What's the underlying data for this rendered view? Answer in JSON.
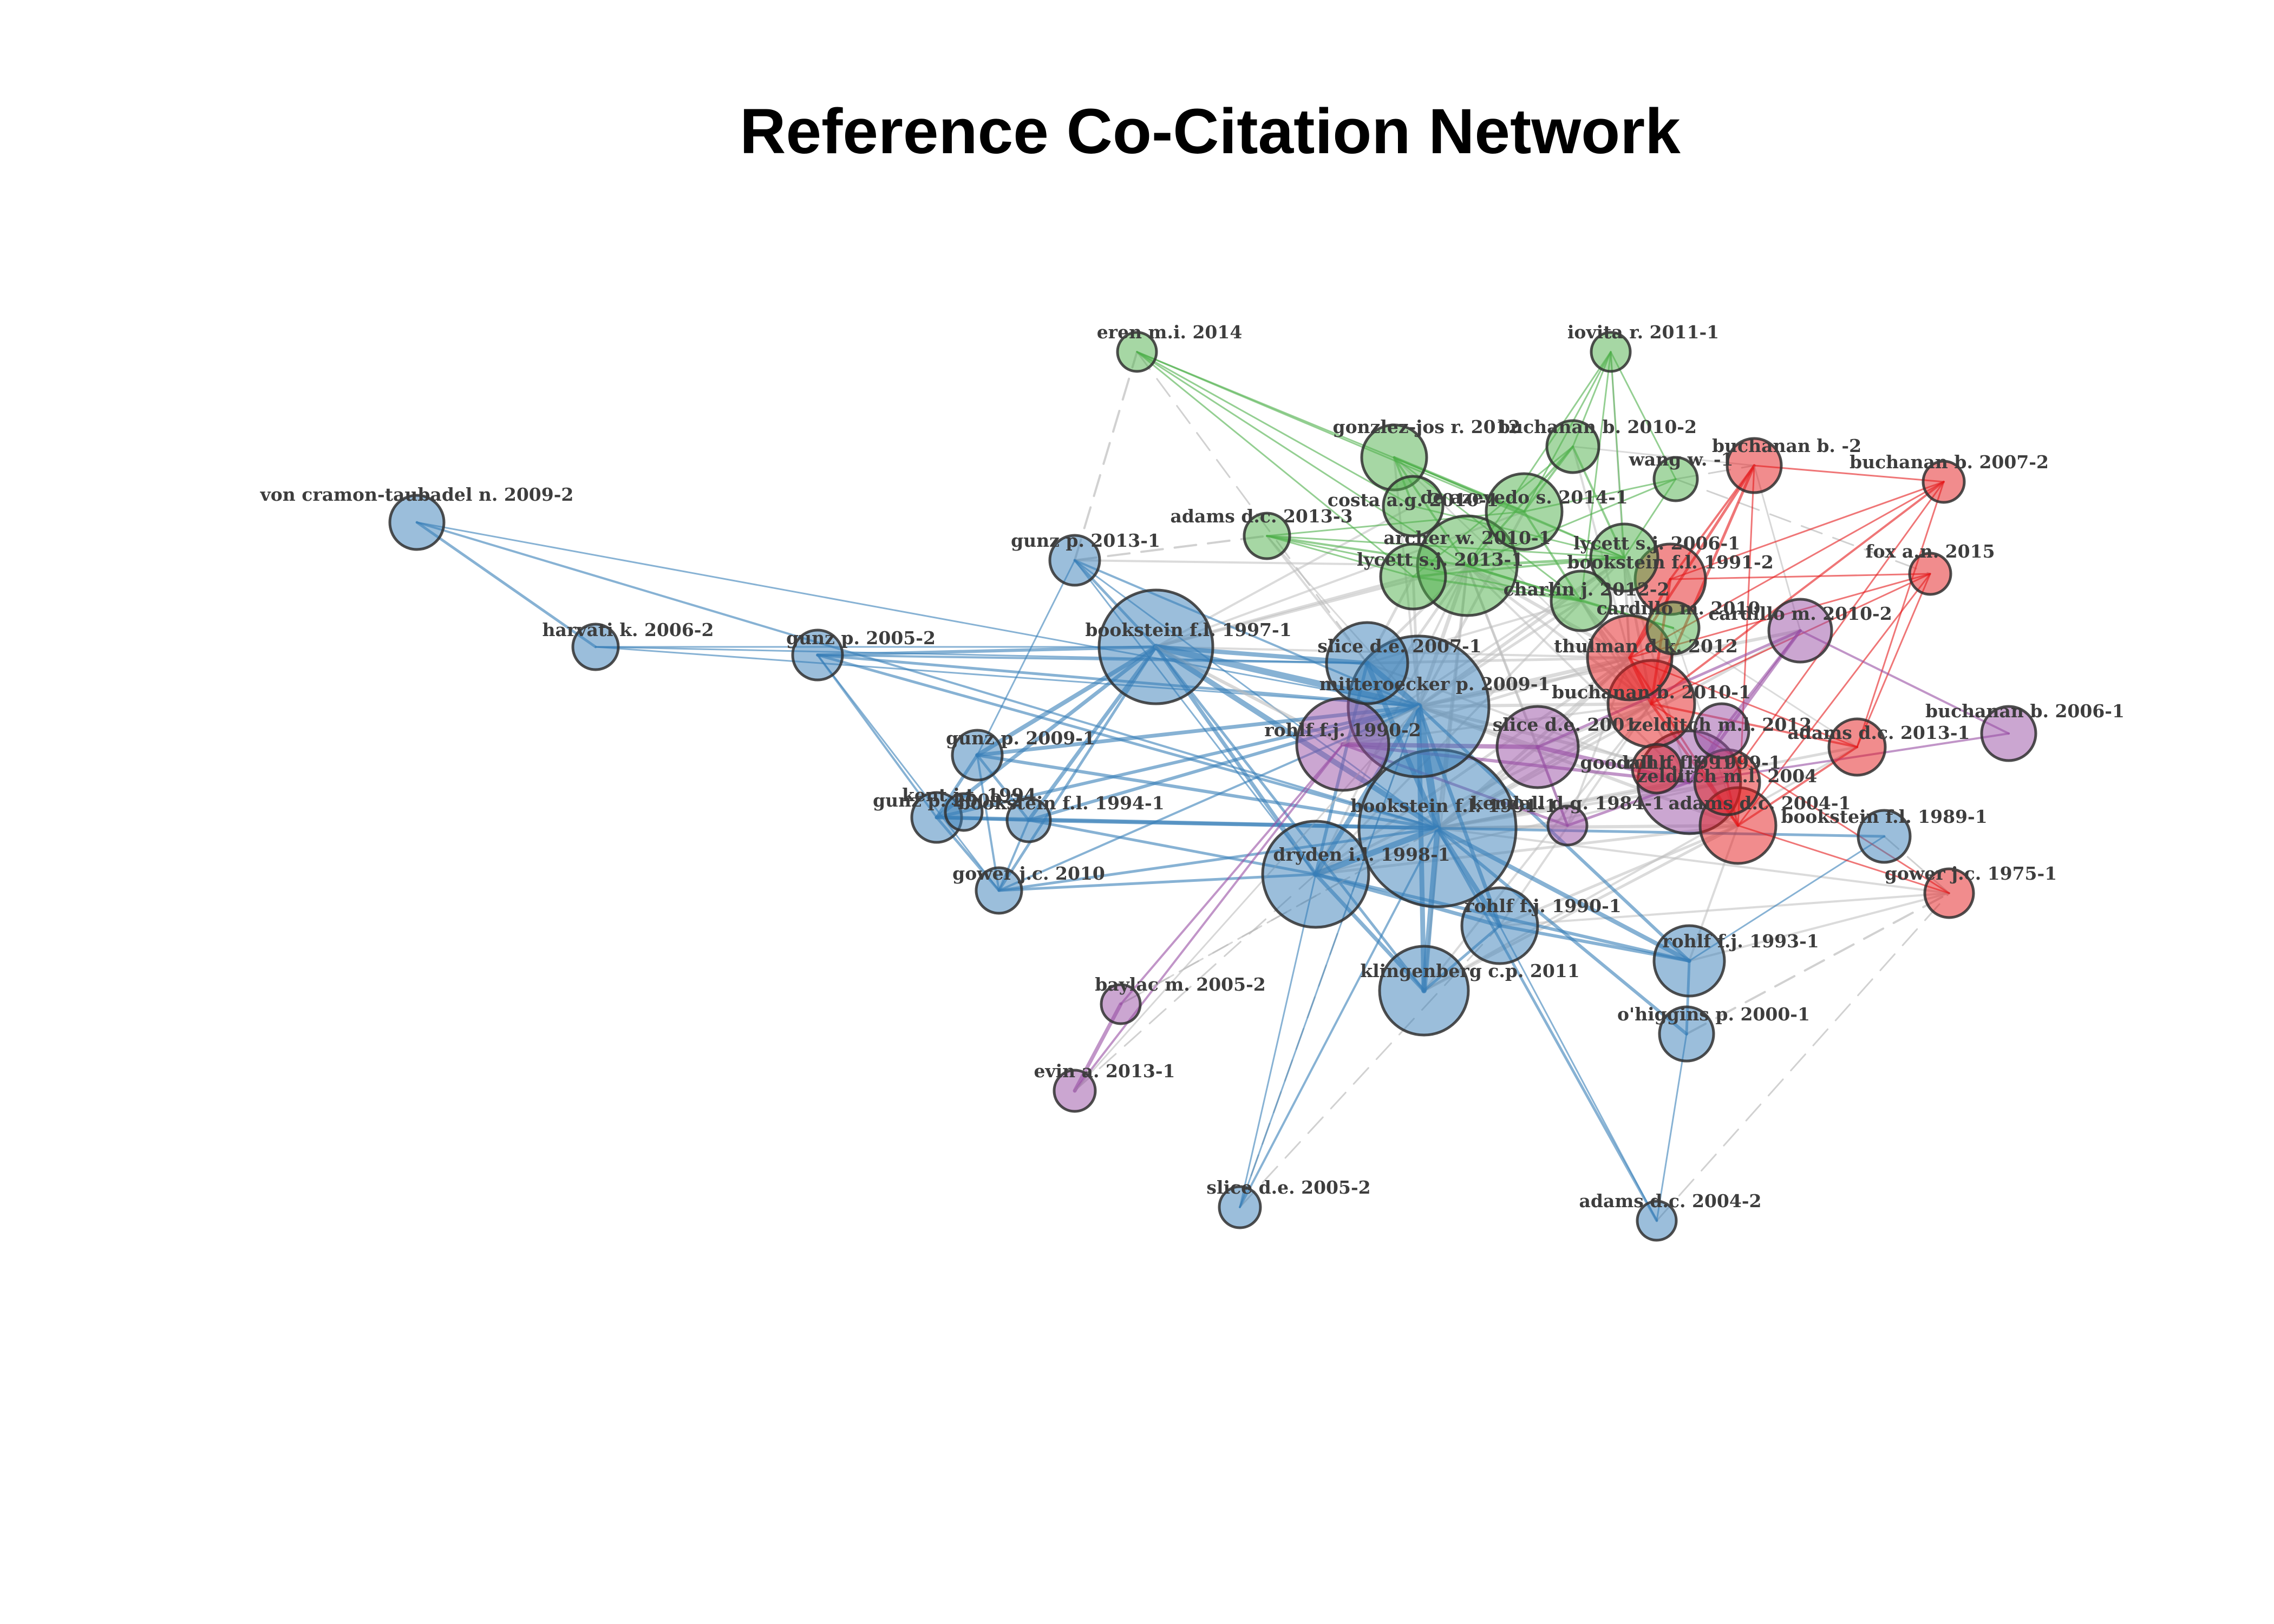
{
  "title": "Reference Co-Citation Network",
  "colors": {
    "blue": "#377eb8",
    "green": "#4daf4a",
    "red": "#e41a1c",
    "purple": "#984ea3",
    "between": "#bdbdbd"
  },
  "nodes": [
    {
      "id": "von cramon-taubadel n. 2009-2",
      "group": "blue"
    },
    {
      "id": "harvati k. 2006-2",
      "group": "blue"
    },
    {
      "id": "gunz p. 2005-2",
      "group": "blue"
    },
    {
      "id": "gunz p. 2013-1",
      "group": "blue"
    },
    {
      "id": "bookstein f.l. 1997-1",
      "group": "blue"
    },
    {
      "id": "gunz p. 2009-1",
      "group": "blue"
    },
    {
      "id": "gunz p. 2009-2",
      "group": "blue"
    },
    {
      "id": "kent j.t. 1994",
      "group": "blue"
    },
    {
      "id": "bookstein f.l. 1994-1",
      "group": "blue"
    },
    {
      "id": "gower j.c. 2010",
      "group": "blue"
    },
    {
      "id": "slice d.e. 2007-1",
      "group": "blue"
    },
    {
      "id": "mitteroecker p. 2009-1",
      "group": "blue"
    },
    {
      "id": "bookstein f.l. 1991-1",
      "group": "blue"
    },
    {
      "id": "dryden i.l. 1998-1",
      "group": "blue"
    },
    {
      "id": "rohlf f.j. 1990-1",
      "group": "blue"
    },
    {
      "id": "klingenberg c.p. 2011",
      "group": "blue"
    },
    {
      "id": "rohlf f.j. 1993-1",
      "group": "blue"
    },
    {
      "id": "o'higgins p. 2000-1",
      "group": "blue"
    },
    {
      "id": "bookstein f.l. 1989-1",
      "group": "blue"
    },
    {
      "id": "slice d.e. 2005-2",
      "group": "blue"
    },
    {
      "id": "adams d.c. 2004-2",
      "group": "blue"
    },
    {
      "id": "eren m.i. 2014",
      "group": "green"
    },
    {
      "id": "iovita r. 2011-1",
      "group": "green"
    },
    {
      "id": "gonzlez-jos r. 2012",
      "group": "green"
    },
    {
      "id": "buchanan b. 2010-2",
      "group": "green"
    },
    {
      "id": "wang w. -1",
      "group": "green"
    },
    {
      "id": "costa a.g. 2010-1",
      "group": "green"
    },
    {
      "id": "de azevedo s. 2014-1",
      "group": "green"
    },
    {
      "id": "adams d.c. 2013-3",
      "group": "green"
    },
    {
      "id": "archer w. 2010-1",
      "group": "green"
    },
    {
      "id": "lycett s.j. 2013-1",
      "group": "green"
    },
    {
      "id": "lycett s.j. 2006-1",
      "group": "green"
    },
    {
      "id": "charlin j. 2012-2",
      "group": "green"
    },
    {
      "id": "cardillo m. 2010",
      "group": "green"
    },
    {
      "id": "buchanan b. -2",
      "group": "red"
    },
    {
      "id": "buchanan b. 2007-2",
      "group": "red"
    },
    {
      "id": "fox a.n. 2015",
      "group": "red"
    },
    {
      "id": "bookstein f.l. 1991-2",
      "group": "red"
    },
    {
      "id": "thulman d.k. 2012",
      "group": "red"
    },
    {
      "id": "buchanan b. 2010-1",
      "group": "red"
    },
    {
      "id": "adams d.c. 2013-1",
      "group": "red"
    },
    {
      "id": "adams d.c. 2004-1",
      "group": "red"
    },
    {
      "id": "gower j.c. 1975-1",
      "group": "red"
    },
    {
      "id": "zelditch m.l. 2004",
      "group": "red"
    },
    {
      "id": "goodall c. 1991",
      "group": "red"
    },
    {
      "id": "rohlf f.j. 1990-2",
      "group": "purple"
    },
    {
      "id": "slice d.e. 2001",
      "group": "purple"
    },
    {
      "id": "rohlf f.j. 1999-1",
      "group": "purple"
    },
    {
      "id": "kendall d.g. 1984-1",
      "group": "purple"
    },
    {
      "id": "cardillo m. 2010-2",
      "group": "purple"
    },
    {
      "id": "zelditch m.l. 2012",
      "group": "purple"
    },
    {
      "id": "buchanan b. 2006-1",
      "group": "purple"
    },
    {
      "id": "baylac m. 2005-2",
      "group": "purple"
    },
    {
      "id": "evin a. 2013-1",
      "group": "purple"
    }
  ],
  "labels": [
    "von cramon-taubadel n. 2009-2",
    "harvati k. 2006-2",
    "gunz p. 2005-2",
    "gunz p. 2013-1",
    "bookstein f.l. 1997-1",
    "gunz p. 2009-1",
    "gunz p. 2009-2",
    "kent j.t. 1994",
    "bookstein f.l. 1994-1",
    "gower j.c. 2010",
    "slice d.e. 2007-1",
    "mitteroecker p. 2009-1",
    "bookstein f.l. 1991-1",
    "dryden i.l. 1998-1",
    "rohlf f.j. 1990-1",
    "klingenberg c.p. 2011",
    "rohlf f.j. 1993-1",
    "o'higgins p. 2000-1",
    "bookstein f.l. 1989-1",
    "slice d.e. 2005-2",
    "adams d.c. 2004-2",
    "eren m.i. 2014",
    "iovita r. 2011-1",
    "gonzlez-jos r. 2012",
    "buchanan b. 2010-2",
    "wang w. -1",
    "costa a.g. 2010-1",
    "de azevedo s. 2014-1",
    "adams d.c. 2013-3",
    "archer w. 2010-1",
    "lycett s.j. 2013-1",
    "lycett s.j. 2006-1",
    "charlin j. 2012-2",
    "cardillo m. 2010",
    "buchanan b. -2",
    "buchanan b. 2007-2",
    "fox a.n. 2015",
    "bookstein f.l. 1991-2",
    "thulman d.k. 2012",
    "buchanan b. 2010-1",
    "adams d.c. 2013-1",
    "adams d.c. 2004-1",
    "gower j.c. 1975-1",
    "zelditch m.l. 2004",
    "goodall c. 1991",
    "rohlf f.j. 1990-2",
    "slice d.e. 2001",
    "rohlf f.j. 1999-1",
    "kendall d.g. 1984-1",
    "cardillo m. 2010-2",
    "zelditch m.l. 2012",
    "buchanan b. 2006-1",
    "baylac m. 2005-2",
    "evin a. 2013-1"
  ]
}
